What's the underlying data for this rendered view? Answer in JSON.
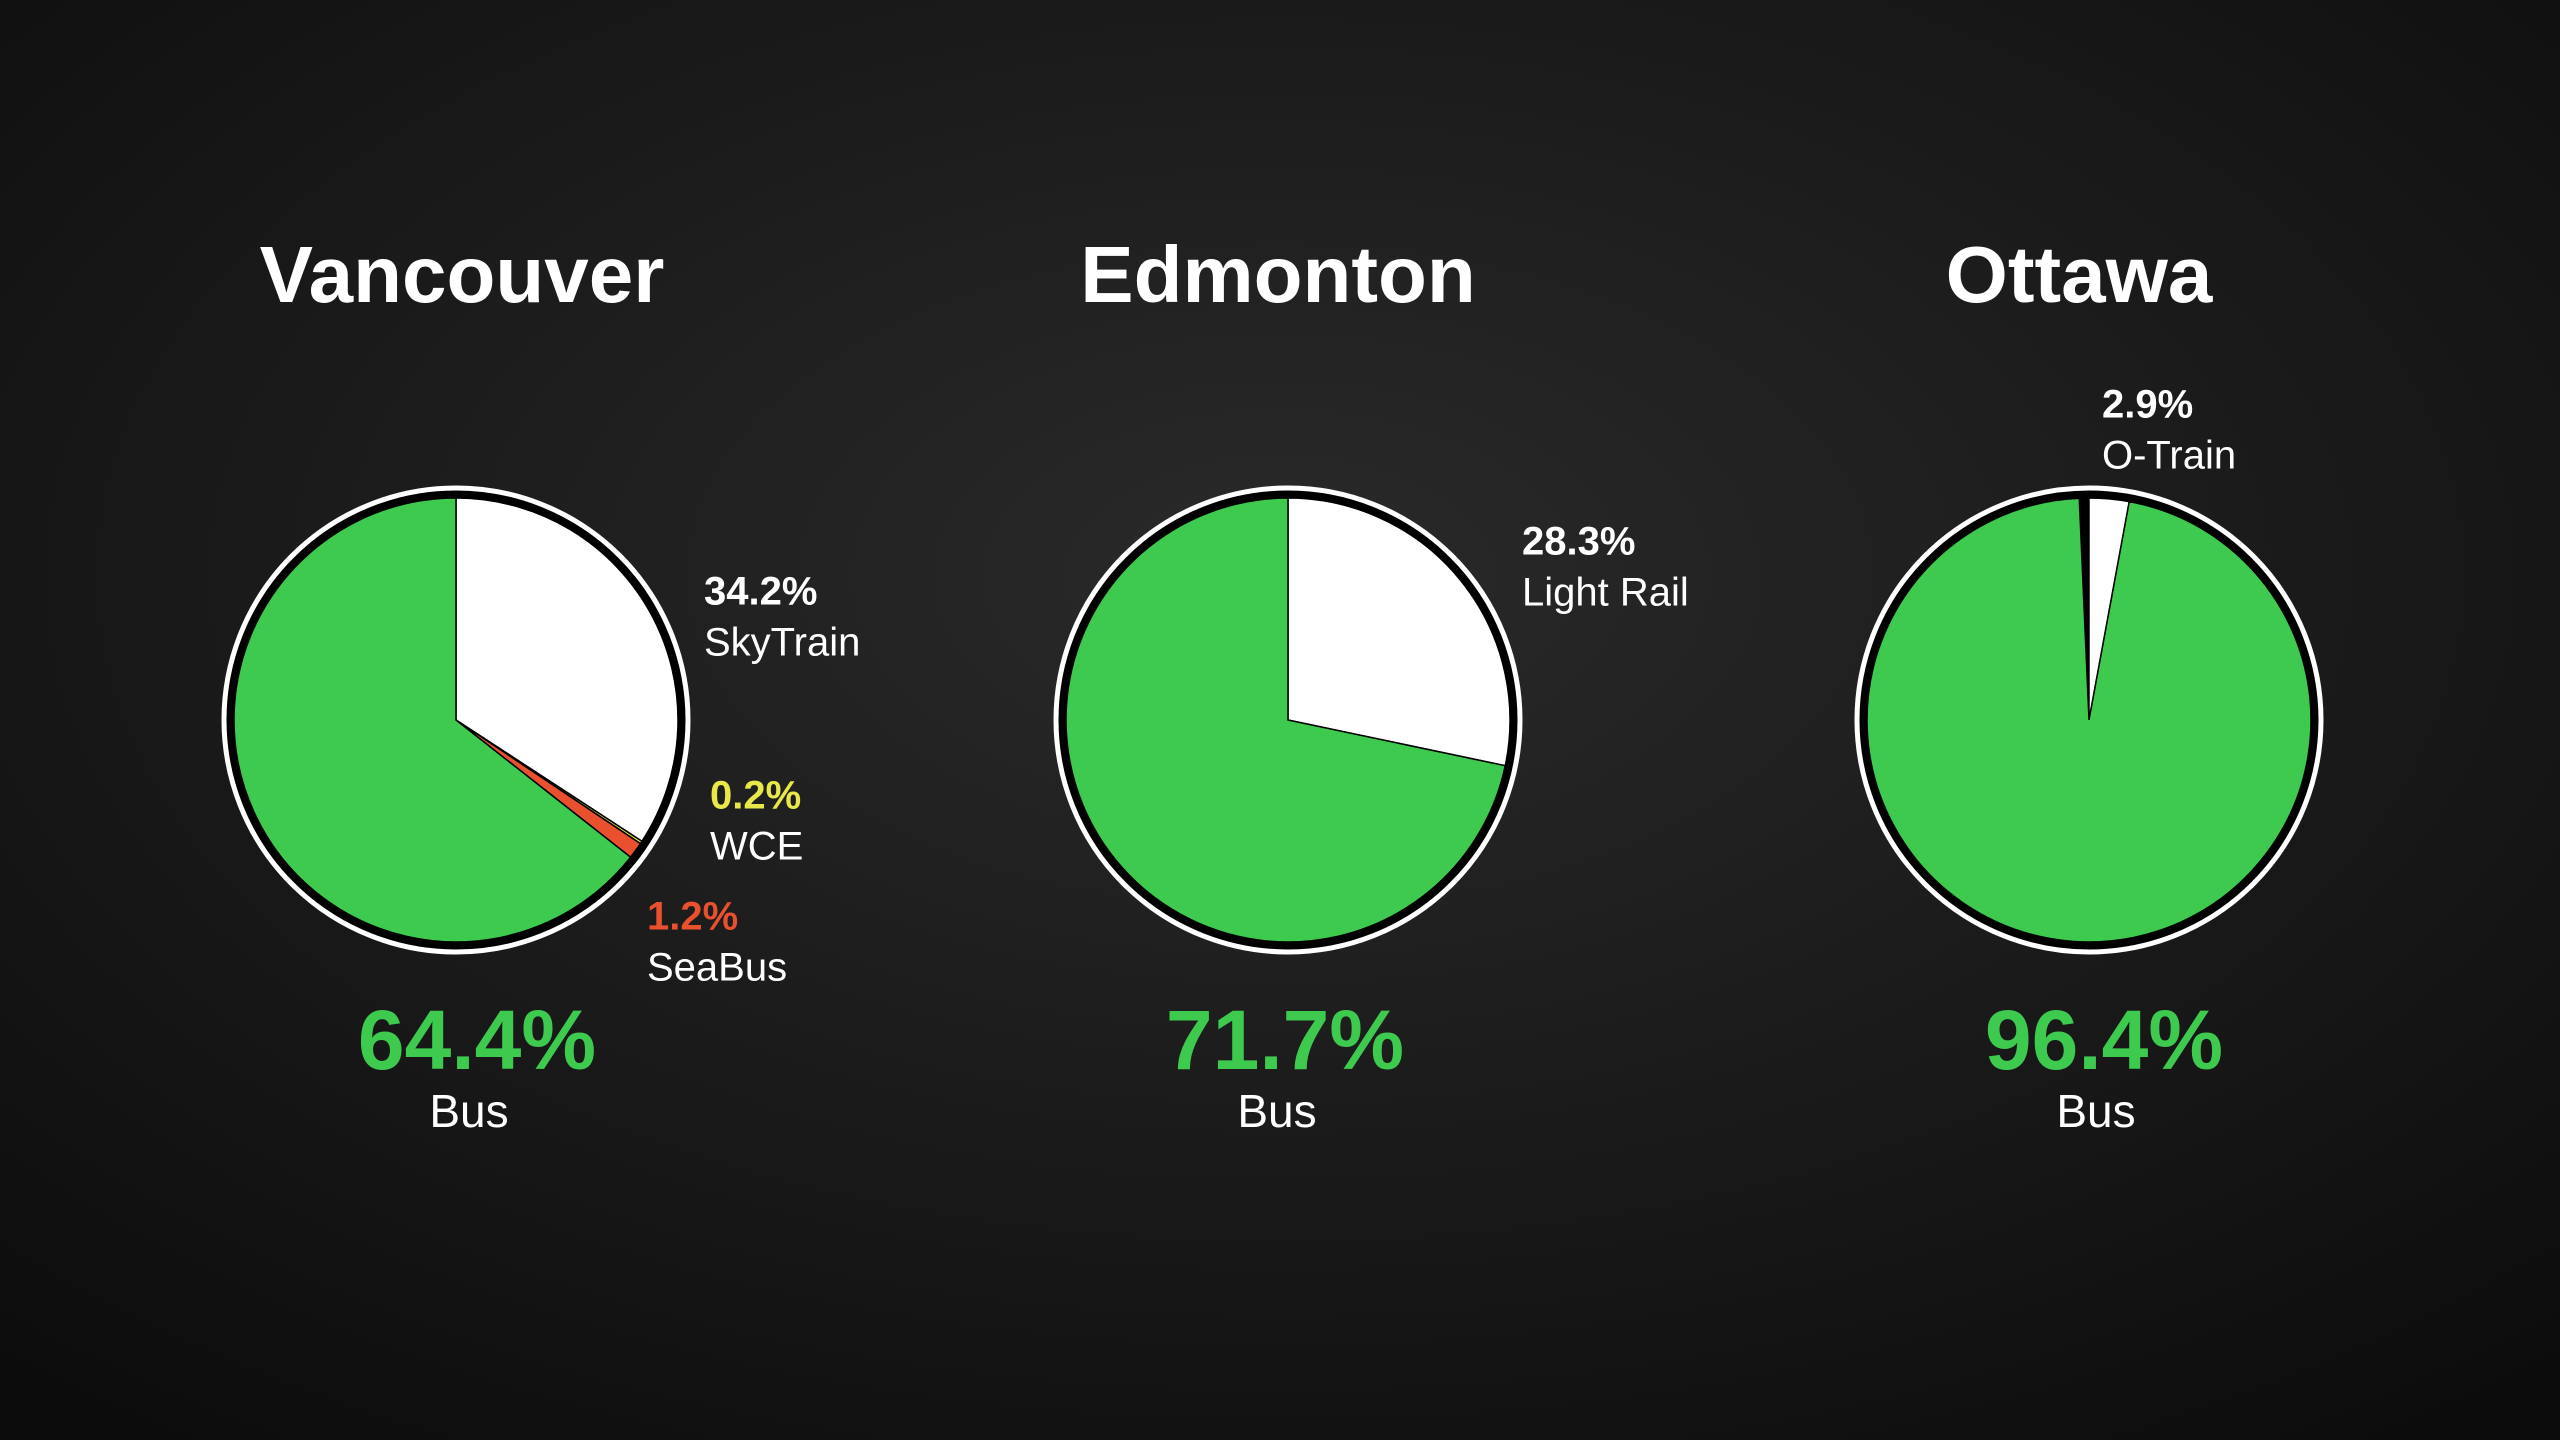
{
  "chart_data": [
    {
      "type": "pie",
      "title": "Vancouver",
      "categories": [
        "SkyTrain",
        "WCE",
        "SeaBus",
        "Bus"
      ],
      "values": [
        34.2,
        0.2,
        1.2,
        64.4
      ],
      "value_labels": [
        "34.2%",
        "0.2%",
        "1.2%",
        "64.4%"
      ],
      "colors": [
        "#ffffff",
        "#e8e84a",
        "#e8502e",
        "#3ec94f"
      ]
    },
    {
      "type": "pie",
      "title": "Edmonton",
      "categories": [
        "Light Rail",
        "Bus"
      ],
      "values": [
        28.3,
        71.7
      ],
      "value_labels": [
        "28.3%",
        "71.7%"
      ],
      "colors": [
        "#ffffff",
        "#3ec94f"
      ]
    },
    {
      "type": "pie",
      "title": "Ottawa",
      "categories": [
        "O-Train",
        "Bus"
      ],
      "values": [
        2.9,
        96.4
      ],
      "value_labels": [
        "2.9%",
        "96.4%"
      ],
      "colors": [
        "#ffffff",
        "#3ec94f"
      ]
    }
  ]
}
